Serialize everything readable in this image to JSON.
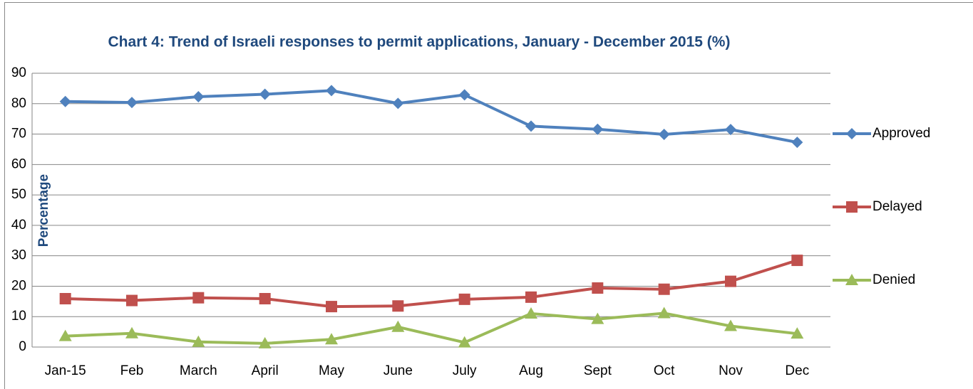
{
  "chart_data": {
    "type": "line",
    "title": "Chart 4: Trend of Israeli responses to permit applications, January - December  2015 (%)",
    "y_label": "Percentage",
    "categories": [
      "Jan-15",
      "Feb",
      "March",
      "April",
      "May",
      "June",
      "July",
      "Aug",
      "Sept",
      "Oct",
      "Nov",
      "Dec"
    ],
    "series": [
      {
        "name": "Approved",
        "color": "#4f81bd",
        "marker": "diamond",
        "values": [
          80.7,
          80.4,
          82.3,
          83.1,
          84.3,
          80.1,
          82.9,
          72.6,
          71.6,
          69.9,
          71.5,
          67.3
        ]
      },
      {
        "name": "Delayed",
        "color": "#c0504d",
        "marker": "square",
        "values": [
          15.9,
          15.3,
          16.2,
          15.9,
          13.3,
          13.5,
          15.7,
          16.4,
          19.4,
          19.0,
          21.6,
          28.5
        ]
      },
      {
        "name": "Denied",
        "color": "#9bbb59",
        "marker": "triangle",
        "values": [
          3.6,
          4.5,
          1.7,
          1.2,
          2.5,
          6.6,
          1.5,
          11.0,
          9.2,
          11.1,
          6.9,
          4.4
        ]
      }
    ],
    "ylim": [
      0,
      90
    ],
    "yticks": [
      0,
      10,
      20,
      30,
      40,
      50,
      60,
      70,
      80,
      90
    ],
    "grid": true,
    "legend": "right"
  }
}
